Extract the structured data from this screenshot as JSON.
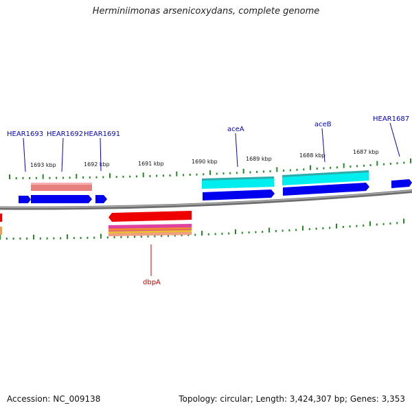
{
  "title": "Herminiimonas arsenicoxydans, complete genome",
  "footer": {
    "accession": "Accession: NC_009138",
    "summary": "Topology: circular; Length: 3,424,307 bp; Genes: 3,353"
  },
  "scale_labels": [
    "1693 kbp",
    "1692 kbp",
    "1691 kbp",
    "1690 kbp",
    "1689 kbp",
    "1688 kbp",
    "1687 kbp"
  ],
  "gene_labels": [
    {
      "text": "HEAR1693",
      "color": "#0000cc"
    },
    {
      "text": "HEAR1692",
      "color": "#0000cc"
    },
    {
      "text": "HEAR1691",
      "color": "#0000cc"
    },
    {
      "text": "aceA",
      "color": "#0000cc"
    },
    {
      "text": "aceB",
      "color": "#0000cc"
    },
    {
      "text": "HEAR1687",
      "color": "#0000cc"
    },
    {
      "text": "dbpA",
      "color": "#cc0000"
    }
  ],
  "colors": {
    "forward_gene": "#0000ee",
    "reverse_gene": "#ee0000",
    "tick": "#228b22",
    "backbone": "#8a8a8a",
    "cyan_feature": "#00e5ee",
    "salmon_feature": "#e88080",
    "magenta_feature": "#e040a0"
  }
}
